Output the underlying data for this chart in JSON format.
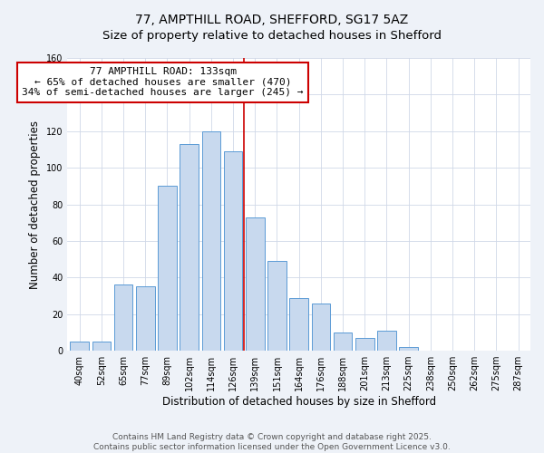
{
  "title": "77, AMPTHILL ROAD, SHEFFORD, SG17 5AZ",
  "subtitle": "Size of property relative to detached houses in Shefford",
  "xlabel": "Distribution of detached houses by size in Shefford",
  "ylabel": "Number of detached properties",
  "bar_labels": [
    "40sqm",
    "52sqm",
    "65sqm",
    "77sqm",
    "89sqm",
    "102sqm",
    "114sqm",
    "126sqm",
    "139sqm",
    "151sqm",
    "164sqm",
    "176sqm",
    "188sqm",
    "201sqm",
    "213sqm",
    "225sqm",
    "238sqm",
    "250sqm",
    "262sqm",
    "275sqm",
    "287sqm"
  ],
  "bar_values": [
    5,
    5,
    36,
    35,
    90,
    113,
    120,
    109,
    73,
    49,
    29,
    26,
    10,
    7,
    11,
    2,
    0,
    0,
    0,
    0,
    0
  ],
  "bar_color": "#c8d9ee",
  "bar_edge_color": "#5b9bd5",
  "vline_color": "#cc0000",
  "vline_index": 7.5,
  "annotation_title": "77 AMPTHILL ROAD: 133sqm",
  "annotation_line1": "← 65% of detached houses are smaller (470)",
  "annotation_line2": "34% of semi-detached houses are larger (245) →",
  "annotation_box_color": "#ffffff",
  "annotation_box_edge": "#cc0000",
  "ylim": [
    0,
    160
  ],
  "yticks": [
    0,
    20,
    40,
    60,
    80,
    100,
    120,
    140,
    160
  ],
  "footer1": "Contains HM Land Registry data © Crown copyright and database right 2025.",
  "footer2": "Contains public sector information licensed under the Open Government Licence v3.0.",
  "bg_color": "#eef2f8",
  "plot_bg_color": "#ffffff",
  "title_fontsize": 10,
  "xlabel_fontsize": 8.5,
  "ylabel_fontsize": 8.5,
  "tick_fontsize": 7,
  "footer_fontsize": 6.5,
  "annot_fontsize": 8
}
